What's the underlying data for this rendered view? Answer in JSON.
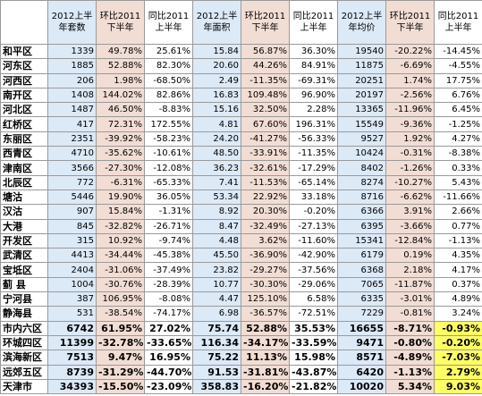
{
  "table": {
    "headers": [
      "2012上半年套数",
      "环比2011下半年",
      "同比2011上半年",
      "2012上半年面积",
      "环比2011下半年",
      "同比2011上半年",
      "2012上半年均价",
      "环比2011下半年",
      "同比2011上半年"
    ],
    "rows": [
      [
        "和平区",
        "1339",
        "49.78%",
        "25.61%",
        "15.84",
        "56.87%",
        "36.30%",
        "19540",
        "-20.22%",
        "-14.45%"
      ],
      [
        "河东区",
        "1885",
        "52.88%",
        "82.30%",
        "20.60",
        "44.26%",
        "84.91%",
        "11875",
        "-6.69%",
        "-4.55%"
      ],
      [
        "河西区",
        "206",
        "1.98%",
        "-68.50%",
        "2.49",
        "-11.35%",
        "-69.31%",
        "20251",
        "1.74%",
        "17.75%"
      ],
      [
        "南开区",
        "1408",
        "144.02%",
        "82.86%",
        "16.83",
        "109.48%",
        "96.90%",
        "20197",
        "-2.56%",
        "6.76%"
      ],
      [
        "河北区",
        "1487",
        "46.50%",
        "-8.83%",
        "15.16",
        "32.50%",
        "2.28%",
        "13365",
        "-11.96%",
        "6.45%"
      ],
      [
        "红桥区",
        "417",
        "72.31%",
        "172.55%",
        "4.81",
        "67.60%",
        "196.31%",
        "15549",
        "-9.36%",
        "-1.25%"
      ],
      [
        "东丽区",
        "2351",
        "-39.92%",
        "-58.23%",
        "24.20",
        "-41.27%",
        "-56.33%",
        "9527",
        "1.92%",
        "4.27%"
      ],
      [
        "西青区",
        "4710",
        "-35.62%",
        "-10.61%",
        "48.50",
        "-33.91%",
        "-11.35%",
        "10424",
        "-0.31%",
        "-8.38%"
      ],
      [
        "津南区",
        "3566",
        "-27.30%",
        "-12.08%",
        "36.23",
        "-32.61%",
        "-17.29%",
        "8402",
        "-1.26%",
        "0.33%"
      ],
      [
        "北辰区",
        "772",
        "-6.31%",
        "-65.33%",
        "7.41",
        "-11.53%",
        "-65.14%",
        "8274",
        "-10.27%",
        "5.43%"
      ],
      [
        "塘沽",
        "5446",
        "19.90%",
        "36.05%",
        "53.34",
        "22.92%",
        "33.18%",
        "8716",
        "-6.62%",
        "-11.66%"
      ],
      [
        "汉沽",
        "907",
        "15.84%",
        "-1.31%",
        "8.92",
        "20.30%",
        "-0.20%",
        "6366",
        "3.91%",
        "2.66%"
      ],
      [
        "大港",
        "845",
        "-32.82%",
        "-26.71%",
        "8.47",
        "-32.49%",
        "-27.13%",
        "6395",
        "-3.66%",
        "0.77%"
      ],
      [
        "开发区",
        "315",
        "10.92%",
        "-9.74%",
        "4.48",
        "3.62%",
        "-11.60%",
        "15341",
        "-12.84%",
        "-1.13%"
      ],
      [
        "武清区",
        "4413",
        "-34.44%",
        "-45.38%",
        "45.50",
        "-36.90%",
        "-42.90%",
        "6179",
        "0.19%",
        "4.35%"
      ],
      [
        "宝坻区",
        "2404",
        "-31.06%",
        "-37.49%",
        "23.82",
        "-29.27%",
        "-37.56%",
        "6368",
        "2.18%",
        "4.17%"
      ],
      [
        "蓟 县",
        "1004",
        "-30.76%",
        "-28.39%",
        "10.77",
        "-30.30%",
        "-29.06%",
        "7065",
        "-11.87%",
        "0.37%"
      ],
      [
        "宁河县",
        "387",
        "106.95%",
        "-8.08%",
        "4.47",
        "125.10%",
        "6.58%",
        "6335",
        "-3.01%",
        "4.89%"
      ],
      [
        "静海县",
        "531",
        "-38.54%",
        "-74.17%",
        "6.98",
        "-36.57%",
        "-72.51%",
        "7229",
        "-0.81%",
        "3.24%"
      ],
      [
        "市内六区",
        "6742",
        "61.95%",
        "27.02%",
        "75.74",
        "52.88%",
        "35.53%",
        "16655",
        "-8.71%",
        "-0.93%"
      ],
      [
        "环城四区",
        "11399",
        "-32.78%",
        "-33.65%",
        "116.34",
        "-34.17%",
        "-33.59%",
        "9471",
        "-0.80%",
        "-0.20%"
      ],
      [
        "滨海新区",
        "7513",
        "9.47%",
        "16.95%",
        "75.22",
        "11.13%",
        "15.98%",
        "8571",
        "-4.89%",
        "-7.03%"
      ],
      [
        "远郊五区",
        "8739",
        "-31.29%",
        "-44.70%",
        "91.53",
        "-31.81%",
        "-43.87%",
        "6420",
        "-1.13%",
        "2.79%"
      ],
      [
        "天津市",
        "34393",
        "-15.50%",
        "-23.09%",
        "358.83",
        "-16.20%",
        "-21.82%",
        "10020",
        "5.34%",
        "9.03%"
      ]
    ]
  }
}
